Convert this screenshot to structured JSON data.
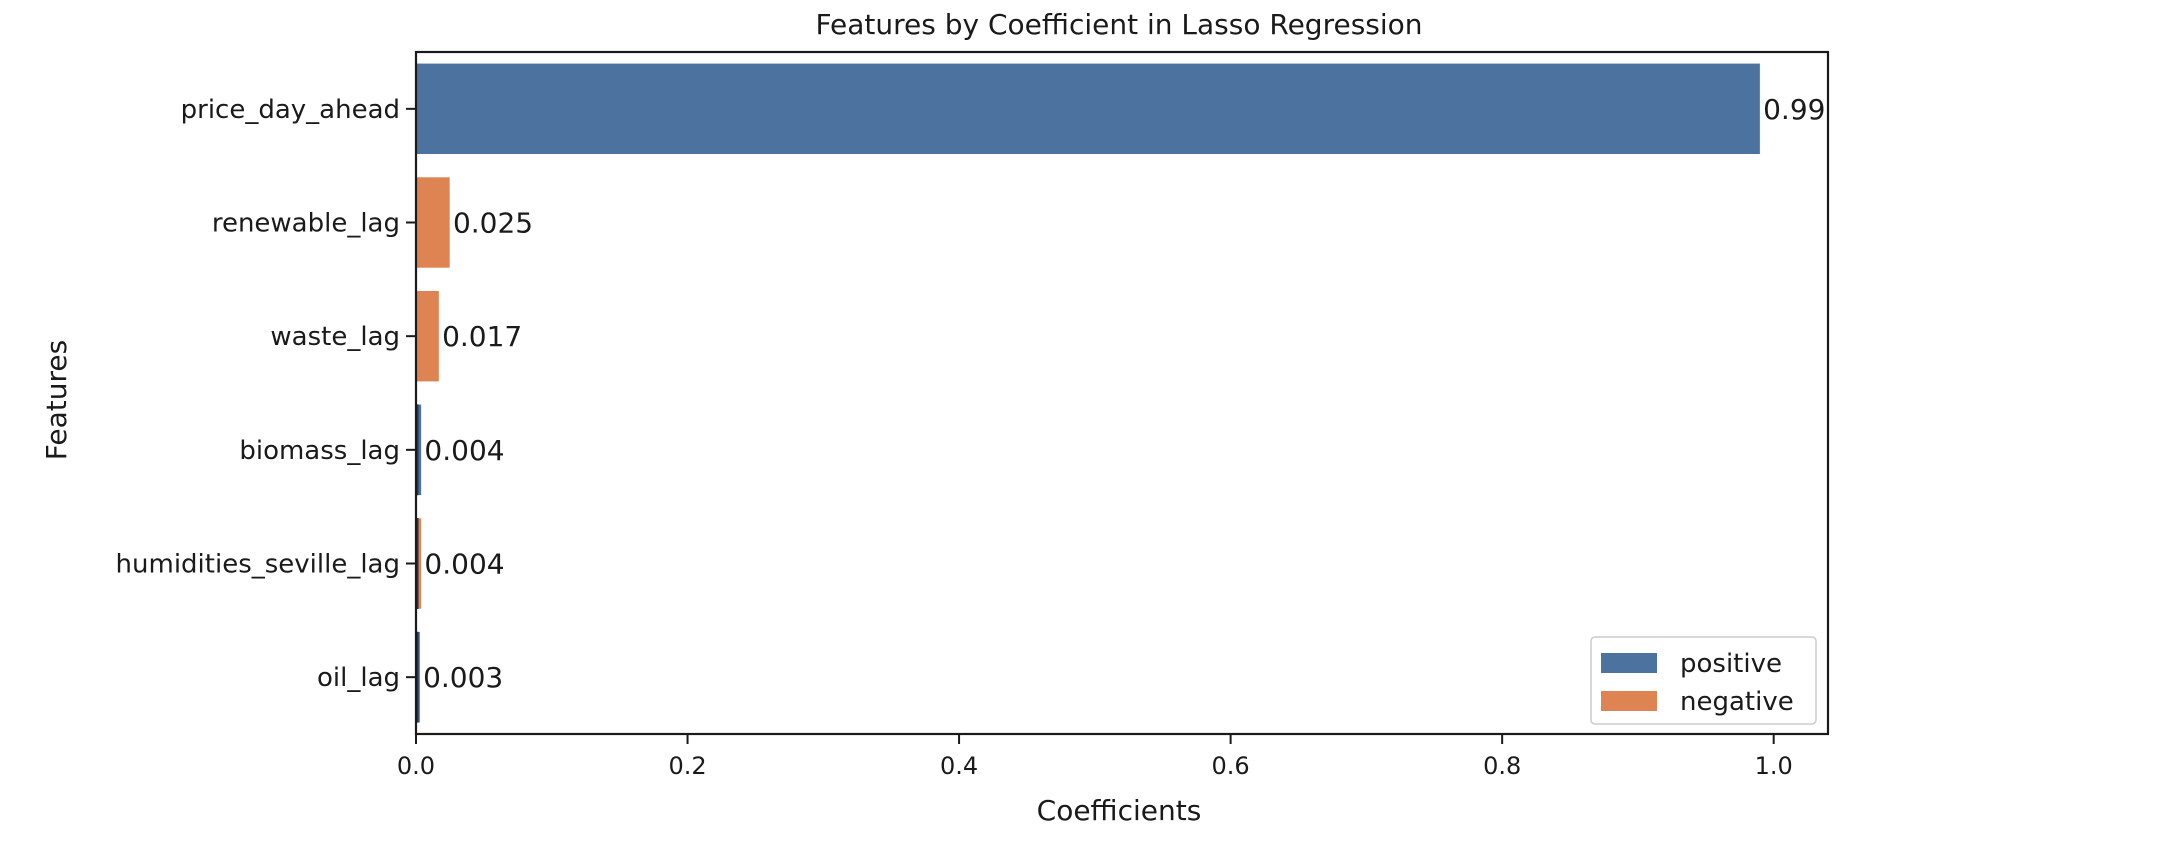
{
  "chart_data": {
    "type": "bar",
    "orientation": "horizontal",
    "title": "Features by Coefficient in Lasso Regression",
    "xlabel": "Coefficients",
    "ylabel": "Features",
    "xlim": [
      0,
      1.04
    ],
    "xticks": [
      0.0,
      0.2,
      0.4,
      0.6,
      0.8,
      1.0
    ],
    "xtick_labels": [
      "0.0",
      "0.2",
      "0.4",
      "0.6",
      "0.8",
      "1.0"
    ],
    "categories": [
      "price_day_ahead",
      "renewable_lag",
      "waste_lag",
      "biomass_lag",
      "humidities_seville_lag",
      "oil_lag"
    ],
    "values": [
      0.99,
      0.025,
      0.017,
      0.004,
      0.004,
      0.003
    ],
    "value_labels": [
      "0.99",
      "0.025",
      "0.017",
      "0.004",
      "0.004",
      "0.003"
    ],
    "sign": [
      "positive",
      "negative",
      "negative",
      "positive",
      "negative",
      "positive"
    ],
    "legend": {
      "position": "lower-right",
      "entries": [
        {
          "name": "positive",
          "color": "#4c72a0"
        },
        {
          "name": "negative",
          "color": "#dd8452"
        }
      ]
    },
    "grid": false
  }
}
